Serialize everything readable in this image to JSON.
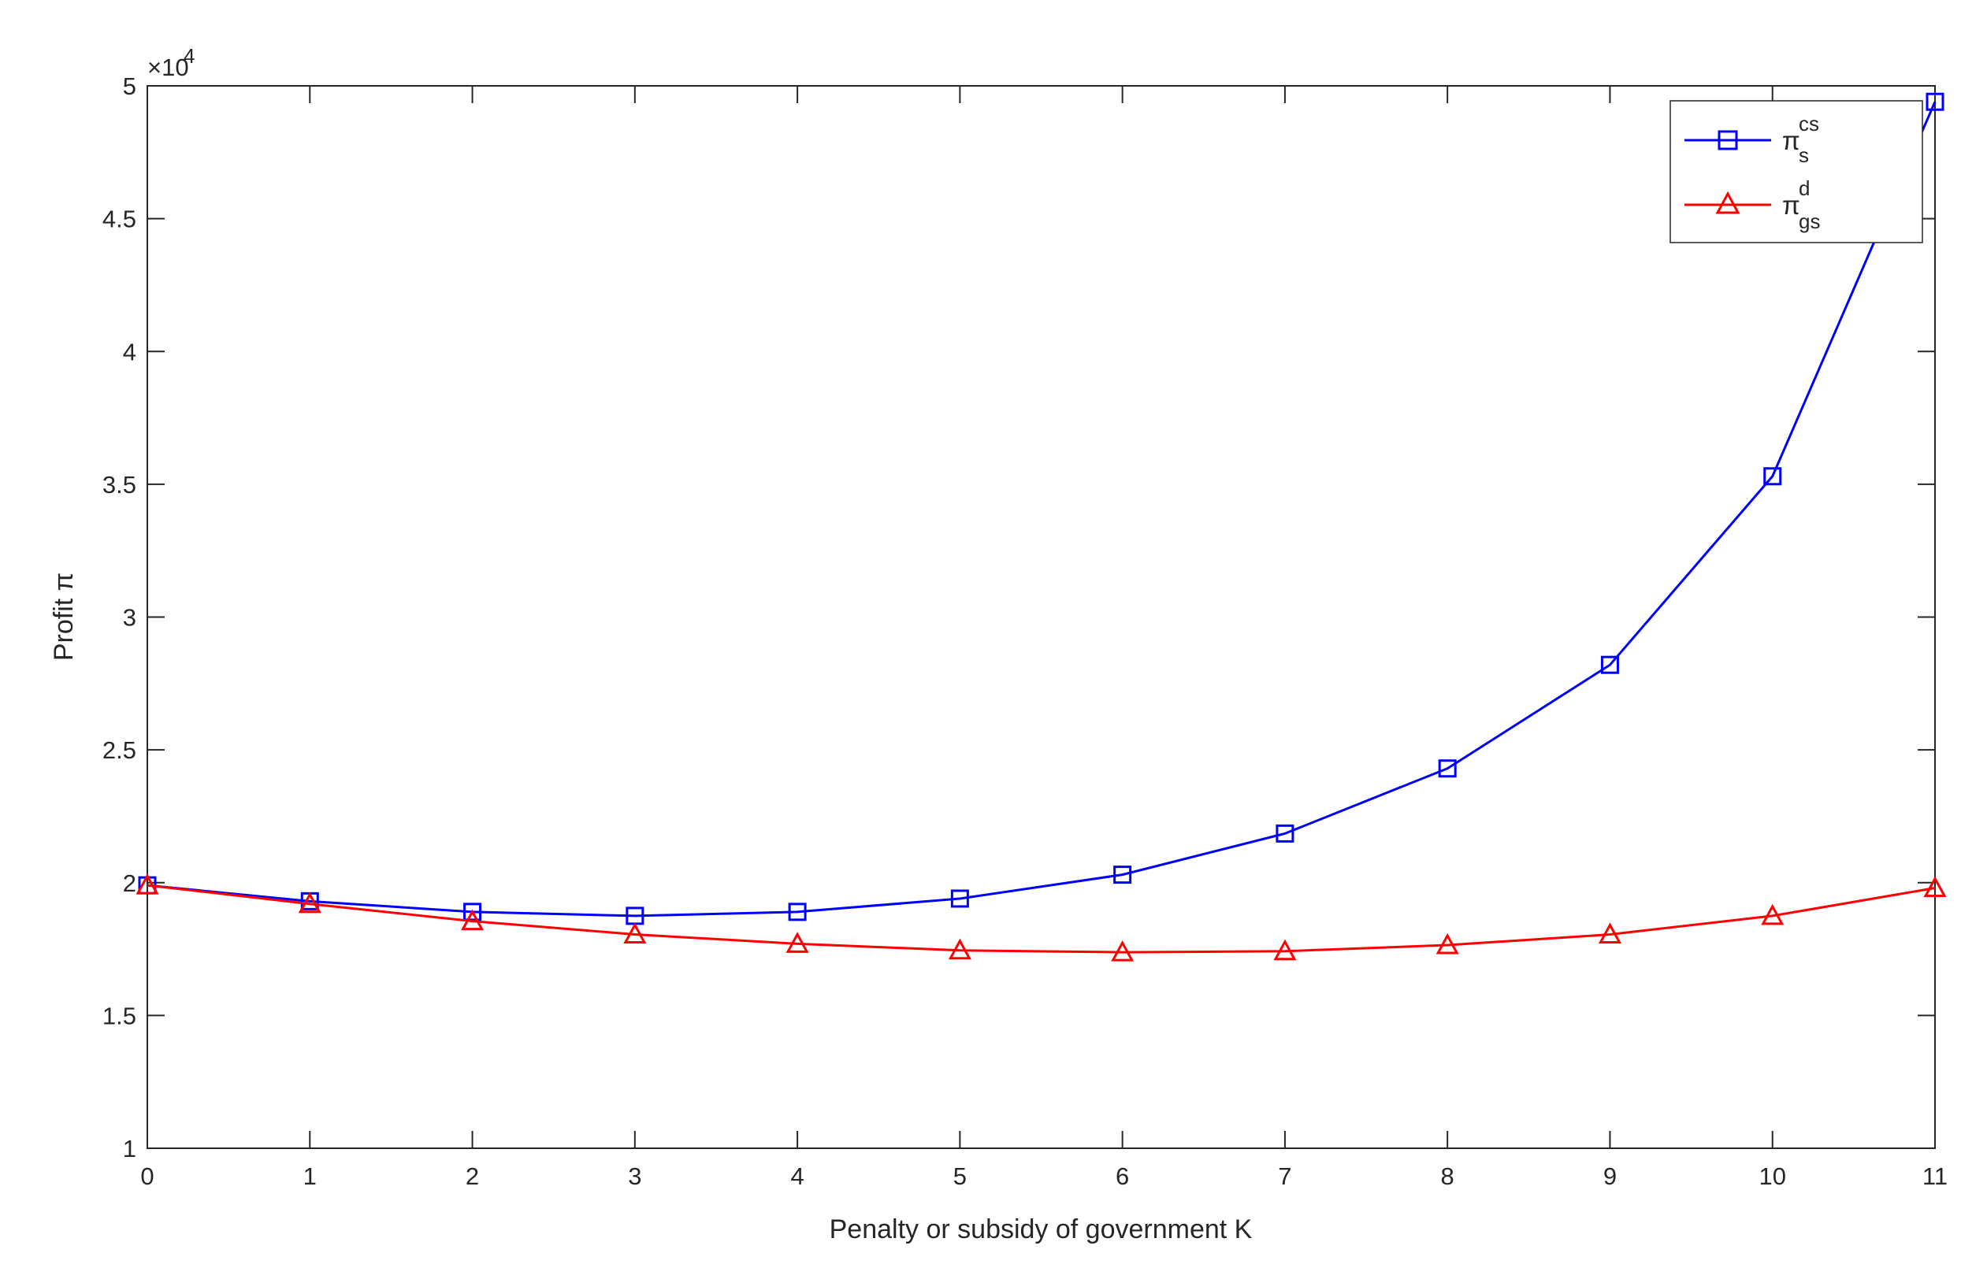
{
  "chart_data": {
    "type": "line",
    "xlabel": "Penalty or subsidy of government K",
    "ylabel": "Profit π",
    "y_exponent": "×10",
    "y_exponent_power": "4",
    "x": [
      0,
      1,
      2,
      3,
      4,
      5,
      6,
      7,
      8,
      9,
      10,
      11
    ],
    "xlim": [
      0,
      11
    ],
    "ylim": [
      1,
      5
    ],
    "x_ticks": [
      "0",
      "1",
      "2",
      "3",
      "4",
      "5",
      "6",
      "7",
      "8",
      "9",
      "10",
      "11"
    ],
    "y_ticks": [
      "1",
      "1.5",
      "2",
      "2.5",
      "3",
      "3.5",
      "4",
      "4.5",
      "5"
    ],
    "y_tick_values": [
      1,
      1.5,
      2,
      2.5,
      3,
      3.5,
      4,
      4.5,
      5
    ],
    "grid": false,
    "legend_position": "top-right",
    "series": [
      {
        "name": "π",
        "sub": "s",
        "sup": "cs",
        "color": "#0000ff",
        "marker": "square",
        "values": [
          1.99,
          1.93,
          1.89,
          1.875,
          1.89,
          1.94,
          2.03,
          2.185,
          2.43,
          2.82,
          3.53,
          4.94
        ]
      },
      {
        "name": "π",
        "sub": "gs",
        "sup": "d",
        "color": "#ff0000",
        "marker": "triangle",
        "values": [
          1.99,
          1.92,
          1.855,
          1.805,
          1.77,
          1.745,
          1.738,
          1.742,
          1.765,
          1.805,
          1.875,
          1.98
        ]
      }
    ]
  }
}
